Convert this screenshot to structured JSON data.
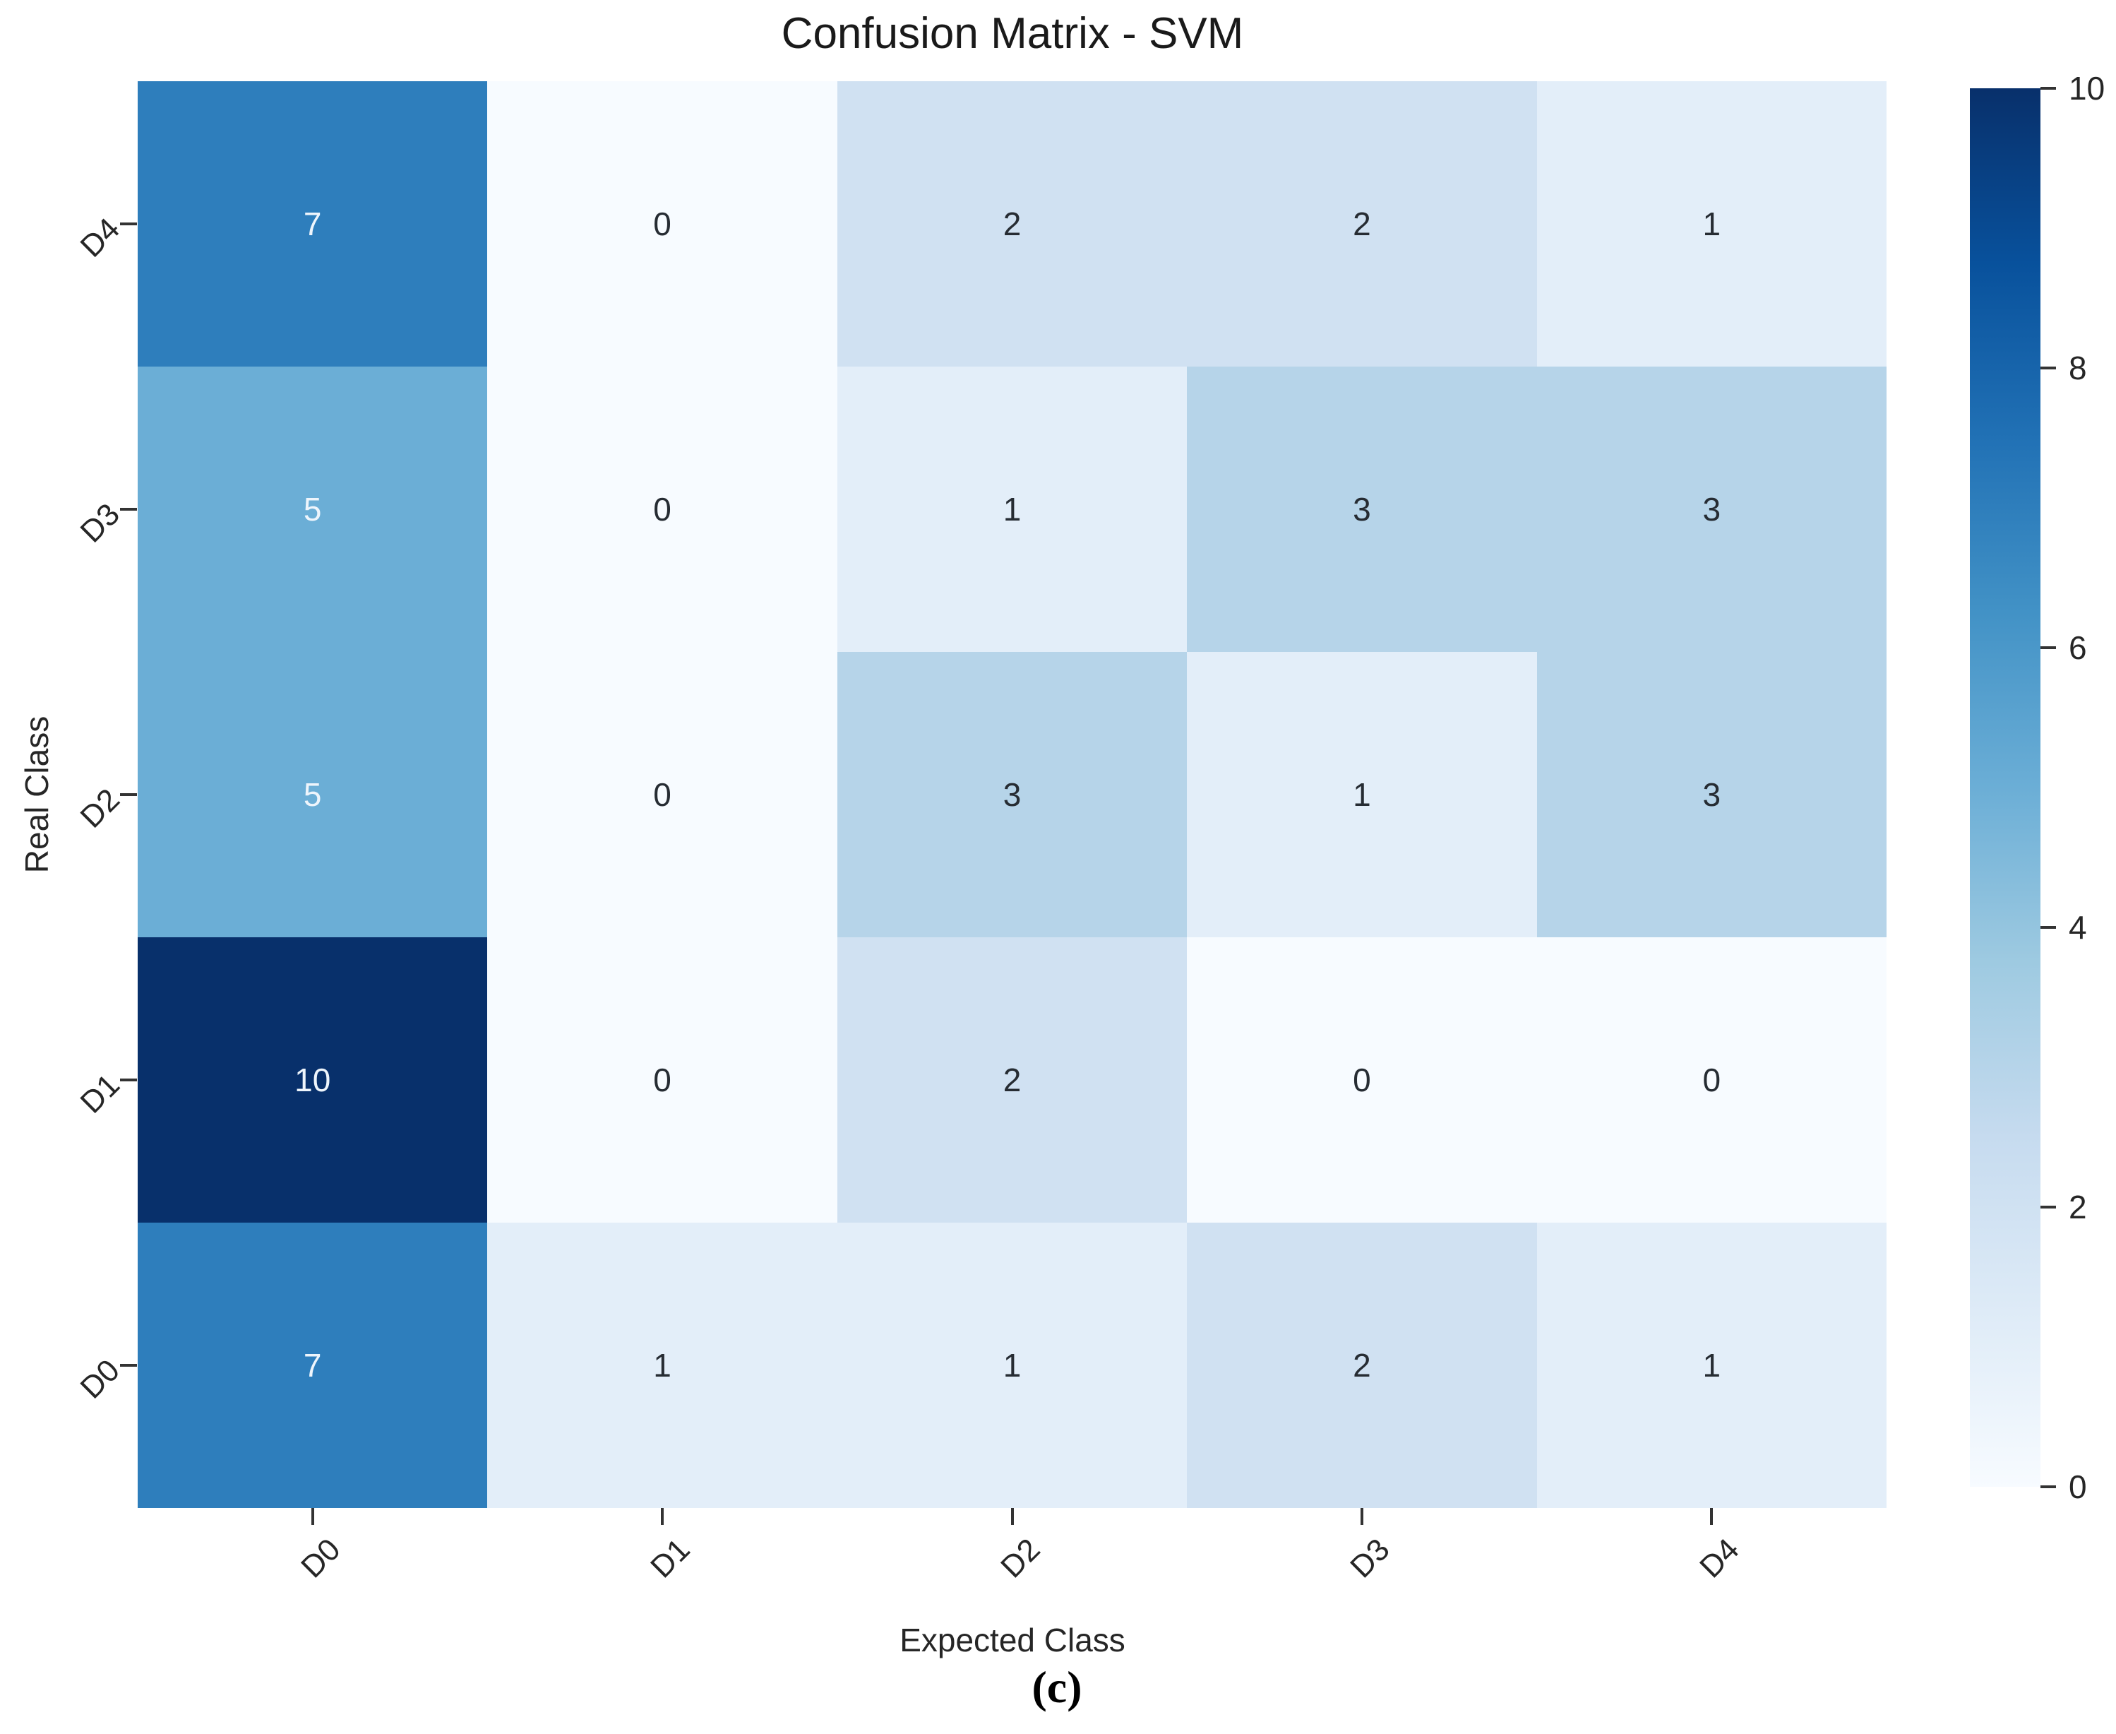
{
  "figure": {
    "caption_label": "(c)"
  },
  "chart_data": {
    "type": "heatmap",
    "title": "Confusion Matrix - SVM",
    "xlabel": "Expected Class",
    "ylabel": "Real Class",
    "x_labels": [
      "D0",
      "D1",
      "D2",
      "D3",
      "D4"
    ],
    "y_labels_top_to_bottom": [
      "D4",
      "D3",
      "D2",
      "D1",
      "D0"
    ],
    "rows": [
      {
        "real_class": "D4",
        "values": [
          7,
          0,
          2,
          2,
          1
        ]
      },
      {
        "real_class": "D3",
        "values": [
          5,
          0,
          1,
          3,
          3
        ]
      },
      {
        "real_class": "D2",
        "values": [
          5,
          0,
          3,
          1,
          3
        ]
      },
      {
        "real_class": "D1",
        "values": [
          10,
          0,
          2,
          0,
          0
        ]
      },
      {
        "real_class": "D0",
        "values": [
          7,
          1,
          1,
          2,
          1
        ]
      }
    ],
    "vmin": 0,
    "vmax": 10,
    "colorbar_ticks": [
      0,
      2,
      4,
      6,
      8,
      10
    ],
    "legend_position": "right",
    "grid": false,
    "colormap": {
      "name": "Blues",
      "anchors": [
        "#f7fbff",
        "#deebf7",
        "#c6dbef",
        "#9ecae1",
        "#6baed6",
        "#4292c6",
        "#2171b5",
        "#08519c",
        "#08306b"
      ]
    },
    "annotation_colors": {
      "light_text": "#eef5fc",
      "dark_text": "#262c33",
      "light_text_threshold": 5
    }
  }
}
